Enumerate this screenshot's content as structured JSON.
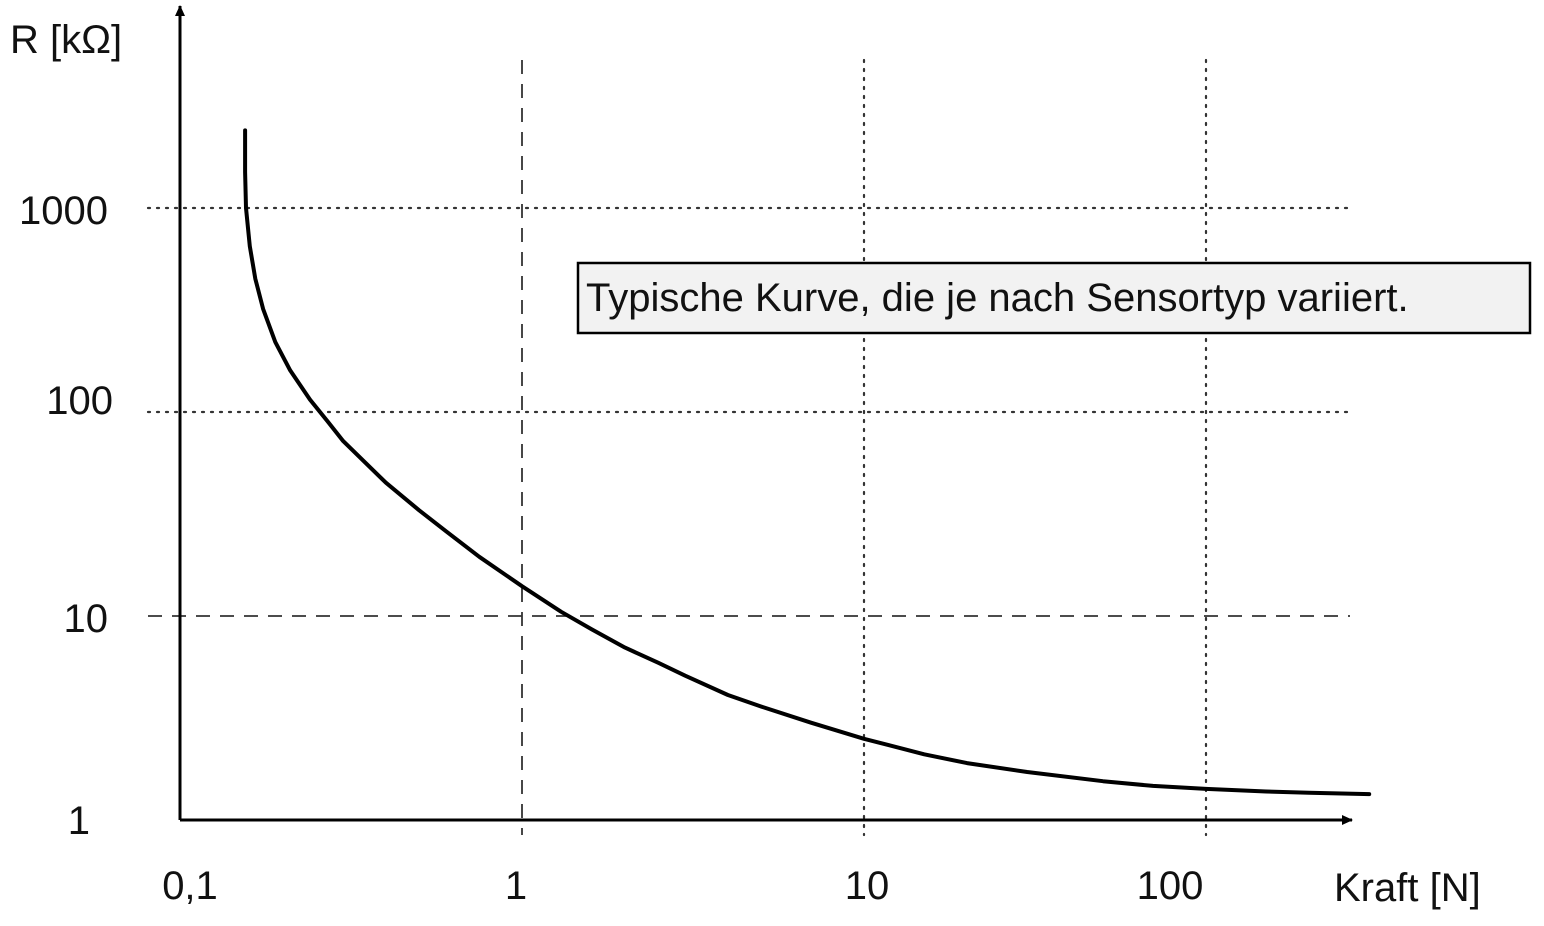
{
  "chart_data": {
    "type": "line",
    "title": "",
    "xlabel": "Kraft [N]",
    "ylabel": "R [kΩ]",
    "x_scale": "log",
    "y_scale": "log",
    "xlim": [
      0.1,
      400
    ],
    "ylim": [
      1,
      3000
    ],
    "x_ticks": [
      {
        "value": 0.1,
        "label": "0,1"
      },
      {
        "value": 1,
        "label": "1"
      },
      {
        "value": 10,
        "label": "10"
      },
      {
        "value": 100,
        "label": "100"
      }
    ],
    "y_ticks": [
      {
        "value": 1,
        "label": "1"
      },
      {
        "value": 10,
        "label": "10"
      },
      {
        "value": 100,
        "label": "100"
      },
      {
        "value": 1000,
        "label": "1000"
      }
    ],
    "grid": "on",
    "annotation": "Typische Kurve, die je nach Sensortyp variiert.",
    "series": [
      {
        "x": [
          0.155,
          0.155,
          0.156,
          0.16,
          0.166,
          0.175,
          0.19,
          0.21,
          0.24,
          0.27,
          0.3,
          0.4,
          0.5,
          0.6,
          0.75,
          1.0,
          1.3,
          1.6,
          2.0,
          2.5,
          3.0,
          4.0,
          5.0,
          7.0,
          10,
          15,
          20,
          30,
          50,
          70,
          100,
          150,
          200,
          300
        ],
        "y": [
          2400,
          1500,
          1000,
          650,
          450,
          320,
          220,
          160,
          115,
          90,
          72,
          45,
          33,
          26,
          19.5,
          14,
          10.5,
          8.6,
          7.0,
          5.9,
          5.1,
          4.1,
          3.6,
          3.0,
          2.5,
          2.1,
          1.9,
          1.72,
          1.55,
          1.47,
          1.42,
          1.38,
          1.36,
          1.34
        ]
      }
    ],
    "colors": {
      "curve": "#000000",
      "grid": "#333333",
      "axis": "#000000"
    }
  }
}
